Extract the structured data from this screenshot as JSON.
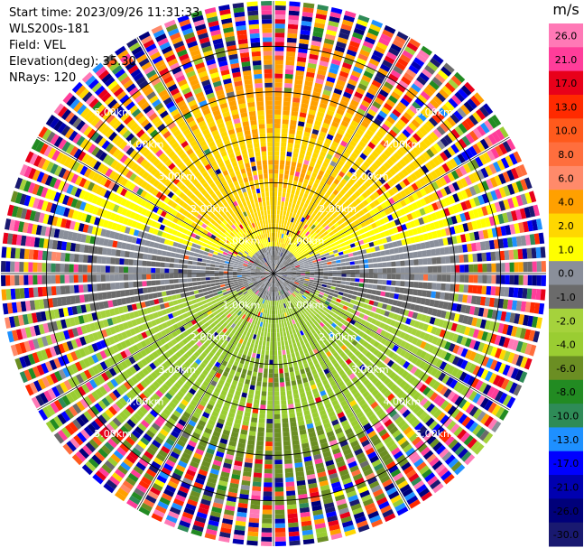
{
  "header": {
    "start_time": "Start time: 2023/09/26 11:31:33",
    "instrument": "WLS200s-181",
    "field": "Field: VEL",
    "elevation": "Elevation(deg): 35.30",
    "nrays": "NRays: 120"
  },
  "chart_data": {
    "type": "heatmap",
    "projection": "polar-ppi",
    "field": "VEL",
    "units": "m/s",
    "nrays": 120,
    "elevation_deg": 35.3,
    "range_rings_km": [
      1.0,
      2.0,
      3.0,
      4.0,
      5.0
    ],
    "ring_labels": [
      "1.00km",
      "2.00km",
      "3.00km",
      "4.00km",
      "5.00km"
    ],
    "max_range_km": 6.0,
    "spoke_step_deg": 30,
    "colorbar": {
      "label": "m/s",
      "ticks": [
        "26.0",
        "21.0",
        "17.0",
        "13.0",
        "10.0",
        "8.0",
        "6.0",
        "4.0",
        "2.0",
        "1.0",
        "0.0",
        "-1.0",
        "-2.0",
        "-4.0",
        "-6.0",
        "-8.0",
        "-10.0",
        "-13.0",
        "-17.0",
        "-21.0",
        "-26.0",
        "-30.0"
      ],
      "bins": [
        {
          "min": 26,
          "max": 30,
          "color": "#ff79b6"
        },
        {
          "min": 21,
          "max": 26,
          "color": "#ff3d9a"
        },
        {
          "min": 17,
          "max": 21,
          "color": "#e8001a"
        },
        {
          "min": 13,
          "max": 17,
          "color": "#ff2a00"
        },
        {
          "min": 10,
          "max": 13,
          "color": "#ff5a1c"
        },
        {
          "min": 8,
          "max": 10,
          "color": "#ff6e3d"
        },
        {
          "min": 6,
          "max": 8,
          "color": "#ff8a6a"
        },
        {
          "min": 4,
          "max": 6,
          "color": "#ffa000"
        },
        {
          "min": 2,
          "max": 4,
          "color": "#ffd700"
        },
        {
          "min": 1,
          "max": 2,
          "color": "#ffff00"
        },
        {
          "min": 0,
          "max": 1,
          "color": "#8a8f9a"
        },
        {
          "min": -1,
          "max": 0,
          "color": "#6b6b6b"
        },
        {
          "min": -2,
          "max": -1,
          "color": "#a5d23c"
        },
        {
          "min": -4,
          "max": -2,
          "color": "#9acd32"
        },
        {
          "min": -6,
          "max": -4,
          "color": "#6b8e23"
        },
        {
          "min": -8,
          "max": -6,
          "color": "#228b22"
        },
        {
          "min": -10,
          "max": -8,
          "color": "#2e8b57"
        },
        {
          "min": -13,
          "max": -10,
          "color": "#1e90ff"
        },
        {
          "min": -17,
          "max": -13,
          "color": "#0000ff"
        },
        {
          "min": -21,
          "max": -17,
          "color": "#0000b0"
        },
        {
          "min": -26,
          "max": -21,
          "color": "#00007a"
        },
        {
          "min": -30,
          "max": -26,
          "color": "#191970"
        }
      ]
    },
    "velocity_pattern": {
      "upper_half_positive": true,
      "lower_half_negative": true,
      "noise_begins_km": 4.0
    }
  }
}
